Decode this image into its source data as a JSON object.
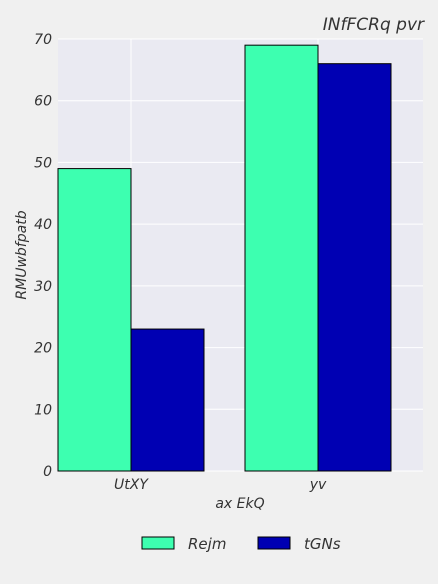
{
  "chart_data": {
    "type": "bar",
    "title": "INfFCRq pvr",
    "xlabel": "ax EkQ",
    "ylabel": "RMUwbfpatb",
    "categories": [
      "UtXY",
      "yv"
    ],
    "series": [
      {
        "name": "Rejm",
        "values": [
          49,
          69
        ],
        "color": "#3dffb0"
      },
      {
        "name": "tGNs",
        "values": [
          23,
          66
        ],
        "color": "#0000b3"
      }
    ],
    "ylim": [
      0,
      70
    ],
    "yticks": [
      0,
      10,
      20,
      30,
      40,
      50,
      60,
      70
    ],
    "grid": true,
    "legend_position": "bottom-center",
    "background_color": "#eaeaf2",
    "page_background": "#f0f0f0"
  }
}
